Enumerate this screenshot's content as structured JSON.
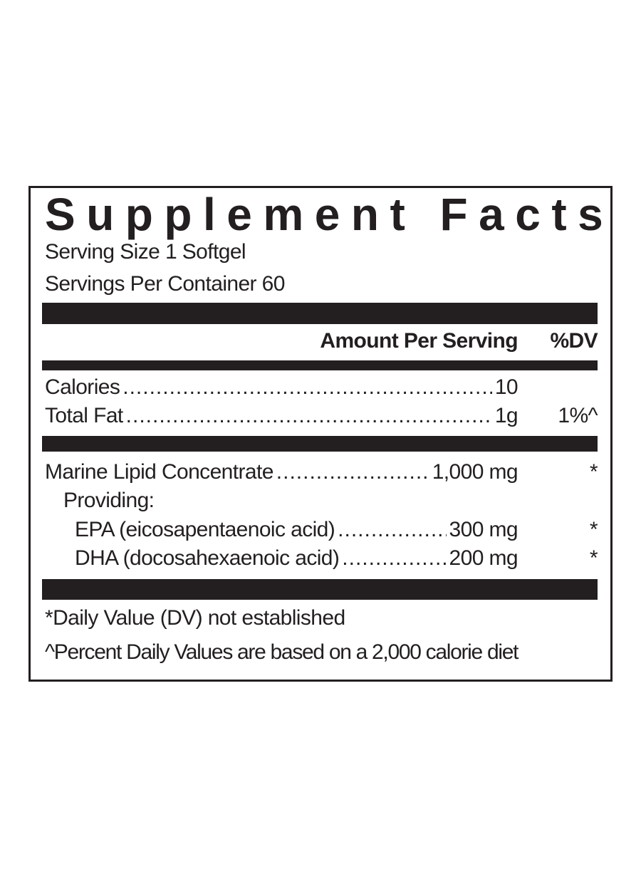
{
  "title": "Supplement Facts",
  "serving_size": "Serving Size 1 Softgel",
  "servings_per_container": "Servings Per Container 60",
  "header": {
    "amount": "Amount Per Serving",
    "dv": "%DV"
  },
  "rows": [
    {
      "label": "Calories",
      "amount": "10",
      "dv": ""
    },
    {
      "label": "Total Fat",
      "amount": "1g",
      "dv": "1%^"
    },
    {
      "label": "Marine Lipid Concentrate",
      "amount": "1,000 mg",
      "dv": "*"
    },
    {
      "label": "Providing:",
      "amount": "",
      "dv": ""
    },
    {
      "label": "EPA (eicosapentaenoic acid)",
      "amount": "300 mg",
      "dv": "*"
    },
    {
      "label": "DHA (docosahexaenoic acid)",
      "amount": "200 mg",
      "dv": "*"
    }
  ],
  "footnotes": [
    "*Daily Value (DV) not established",
    "^Percent Daily Values are based on a 2,000 calorie diet"
  ],
  "colors": {
    "ink": "#231f20",
    "background": "#ffffff"
  }
}
